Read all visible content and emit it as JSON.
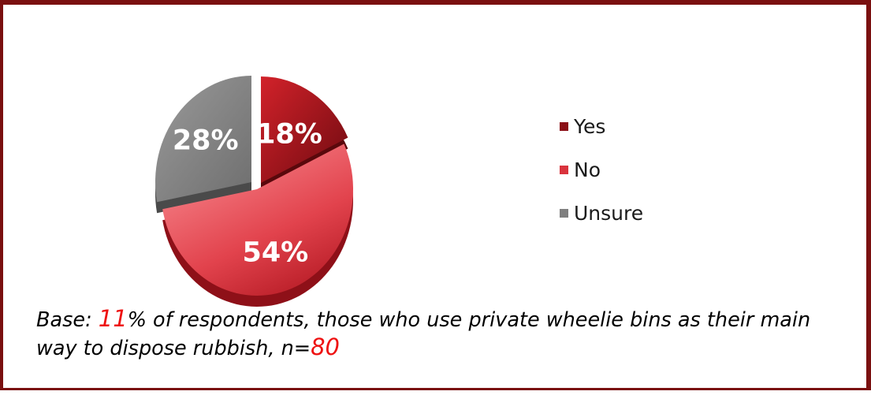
{
  "chart_data": {
    "type": "pie",
    "slices": [
      {
        "label": "Yes",
        "value": 18,
        "display": "18%",
        "color": "#a3141b"
      },
      {
        "label": "No",
        "value": 54,
        "display": "54%",
        "color": "#e84a54"
      },
      {
        "label": "Unsure",
        "value": 28,
        "display": "28%",
        "color": "#828282"
      }
    ],
    "legend_position": "right",
    "exploded": true,
    "style": "3d"
  },
  "legend": {
    "items": [
      {
        "label": "Yes",
        "color": "#8b0f16"
      },
      {
        "label": "No",
        "color": "#d9333d"
      },
      {
        "label": "Unsure",
        "color": "#7f7f7f"
      }
    ]
  },
  "note": {
    "prefix": "Base: ",
    "percent": "11",
    "middle": "% of respondents, those who use private wheelie bins as their main way to dispose rubbish, n=",
    "n": "80"
  },
  "colors": {
    "frame": "#7a1010",
    "highlight": "#ee1111"
  }
}
